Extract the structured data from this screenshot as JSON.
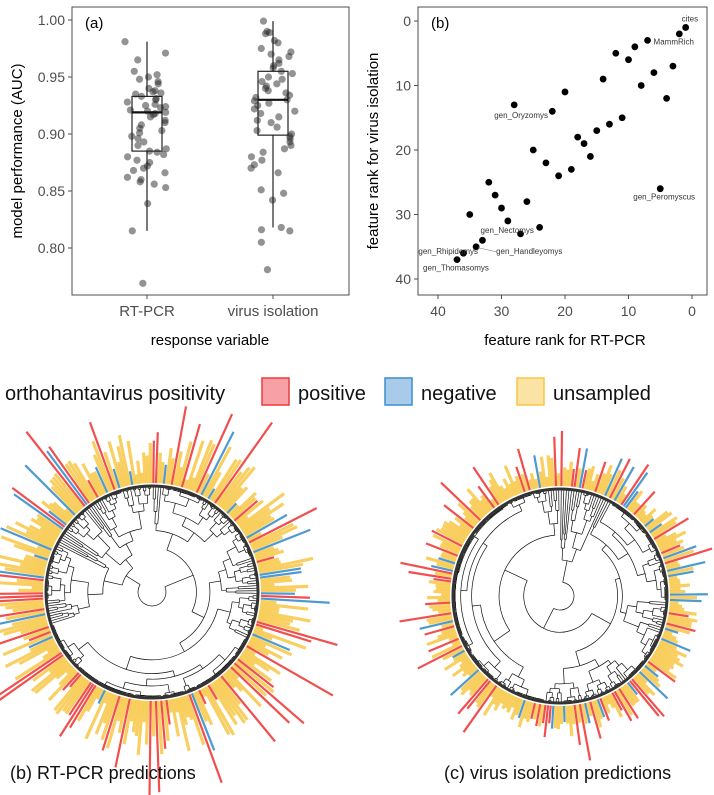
{
  "chart_data": [
    {
      "type": "box",
      "panel_label": "(a)",
      "xlabel": "response variable",
      "ylabel": "model performance (AUC)",
      "ylim": [
        0.76,
        1.01
      ],
      "yticks": [
        "0.80",
        "0.85",
        "0.90",
        "0.95",
        "1.00"
      ],
      "grid": false,
      "categories": [
        "RT-PCR",
        "virus isolation"
      ],
      "boxes": [
        {
          "whisker_low": 0.815,
          "q1": 0.885,
          "median": 0.919,
          "q3": 0.933,
          "whisker_high": 0.981
        },
        {
          "whisker_low": 0.818,
          "q1": 0.899,
          "median": 0.93,
          "q3": 0.955,
          "whisker_high": 0.999
        }
      ],
      "points": [
        [
          0.981,
          0.971,
          0.965,
          0.955,
          0.952,
          0.95,
          0.948,
          0.946,
          0.944,
          0.94,
          0.938,
          0.937,
          0.936,
          0.935,
          0.933,
          0.931,
          0.93,
          0.928,
          0.926,
          0.925,
          0.924,
          0.923,
          0.921,
          0.92,
          0.919,
          0.918,
          0.917,
          0.915,
          0.912,
          0.91,
          0.908,
          0.905,
          0.903,
          0.901,
          0.898,
          0.896,
          0.893,
          0.89,
          0.887,
          0.885,
          0.884,
          0.882,
          0.88,
          0.877,
          0.875,
          0.872,
          0.87,
          0.868,
          0.866,
          0.862,
          0.86,
          0.858,
          0.856,
          0.853,
          0.839,
          0.815,
          0.769
        ],
        [
          0.999,
          0.99,
          0.989,
          0.988,
          0.982,
          0.98,
          0.975,
          0.972,
          0.97,
          0.968,
          0.965,
          0.962,
          0.96,
          0.958,
          0.955,
          0.953,
          0.95,
          0.948,
          0.946,
          0.944,
          0.942,
          0.94,
          0.938,
          0.936,
          0.934,
          0.932,
          0.93,
          0.929,
          0.927,
          0.925,
          0.922,
          0.92,
          0.918,
          0.915,
          0.912,
          0.91,
          0.906,
          0.903,
          0.9,
          0.898,
          0.896,
          0.893,
          0.89,
          0.887,
          0.884,
          0.88,
          0.877,
          0.873,
          0.87,
          0.866,
          0.851,
          0.848,
          0.842,
          0.818,
          0.816,
          0.815,
          0.805,
          0.781
        ]
      ]
    },
    {
      "type": "scatter",
      "panel_label": "(b)",
      "xlabel": "feature rank for RT-PCR",
      "ylabel": "feature rank for virus isolation",
      "xlim": [
        42,
        -1
      ],
      "ylim": [
        -2,
        43
      ],
      "x_reversed": true,
      "y_reversed": true,
      "xticks": [
        "40",
        "30",
        "20",
        "10",
        "0"
      ],
      "yticks": [
        "0",
        "10",
        "20",
        "30",
        "40"
      ],
      "grid": false,
      "points": [
        {
          "x": 1,
          "y": 1,
          "label": "cites"
        },
        {
          "x": 2,
          "y": 2
        },
        {
          "x": 7,
          "y": 3,
          "label": "MammRich"
        },
        {
          "x": 9,
          "y": 4
        },
        {
          "x": 12,
          "y": 5
        },
        {
          "x": 10,
          "y": 6
        },
        {
          "x": 3,
          "y": 7
        },
        {
          "x": 6,
          "y": 8
        },
        {
          "x": 14,
          "y": 9
        },
        {
          "x": 8,
          "y": 10
        },
        {
          "x": 20,
          "y": 11
        },
        {
          "x": 4,
          "y": 12
        },
        {
          "x": 28,
          "y": 13,
          "label": "gen_Oryzomys"
        },
        {
          "x": 22,
          "y": 14
        },
        {
          "x": 11,
          "y": 15
        },
        {
          "x": 13,
          "y": 16
        },
        {
          "x": 15,
          "y": 17
        },
        {
          "x": 18,
          "y": 18
        },
        {
          "x": 17,
          "y": 19
        },
        {
          "x": 25,
          "y": 20
        },
        {
          "x": 16,
          "y": 21
        },
        {
          "x": 23,
          "y": 22
        },
        {
          "x": 19,
          "y": 23
        },
        {
          "x": 21,
          "y": 24
        },
        {
          "x": 32,
          "y": 25
        },
        {
          "x": 5,
          "y": 26,
          "label": "gen_Peromyscus"
        },
        {
          "x": 31,
          "y": 27
        },
        {
          "x": 26,
          "y": 28
        },
        {
          "x": 30,
          "y": 29
        },
        {
          "x": 35,
          "y": 30
        },
        {
          "x": 29,
          "y": 31
        },
        {
          "x": 24,
          "y": 32
        },
        {
          "x": 27,
          "y": 33,
          "label": "gen_Nectomys"
        },
        {
          "x": 33,
          "y": 34
        },
        {
          "x": 34,
          "y": 35,
          "label": "gen_Handleyomys"
        },
        {
          "x": 36,
          "y": 36,
          "label": "gen_Rhipidomys"
        },
        {
          "x": 37,
          "y": 37,
          "label": "gen_Thomasomys"
        }
      ]
    },
    {
      "type": "phylogeny",
      "caption": "(b) RT-PCR predictions"
    },
    {
      "type": "phylogeny",
      "caption": "(c) virus isolation predictions"
    }
  ],
  "legend": {
    "title": "orthohantavirus positivity",
    "items": [
      {
        "label": "positive",
        "color": "#ef3b3b",
        "fill": "#f7a1a6"
      },
      {
        "label": "negative",
        "color": "#3a8fcc",
        "fill": "#a9cbea"
      },
      {
        "label": "unsampled",
        "color": "#f7c744",
        "fill": "#fbe3a6"
      }
    ]
  }
}
